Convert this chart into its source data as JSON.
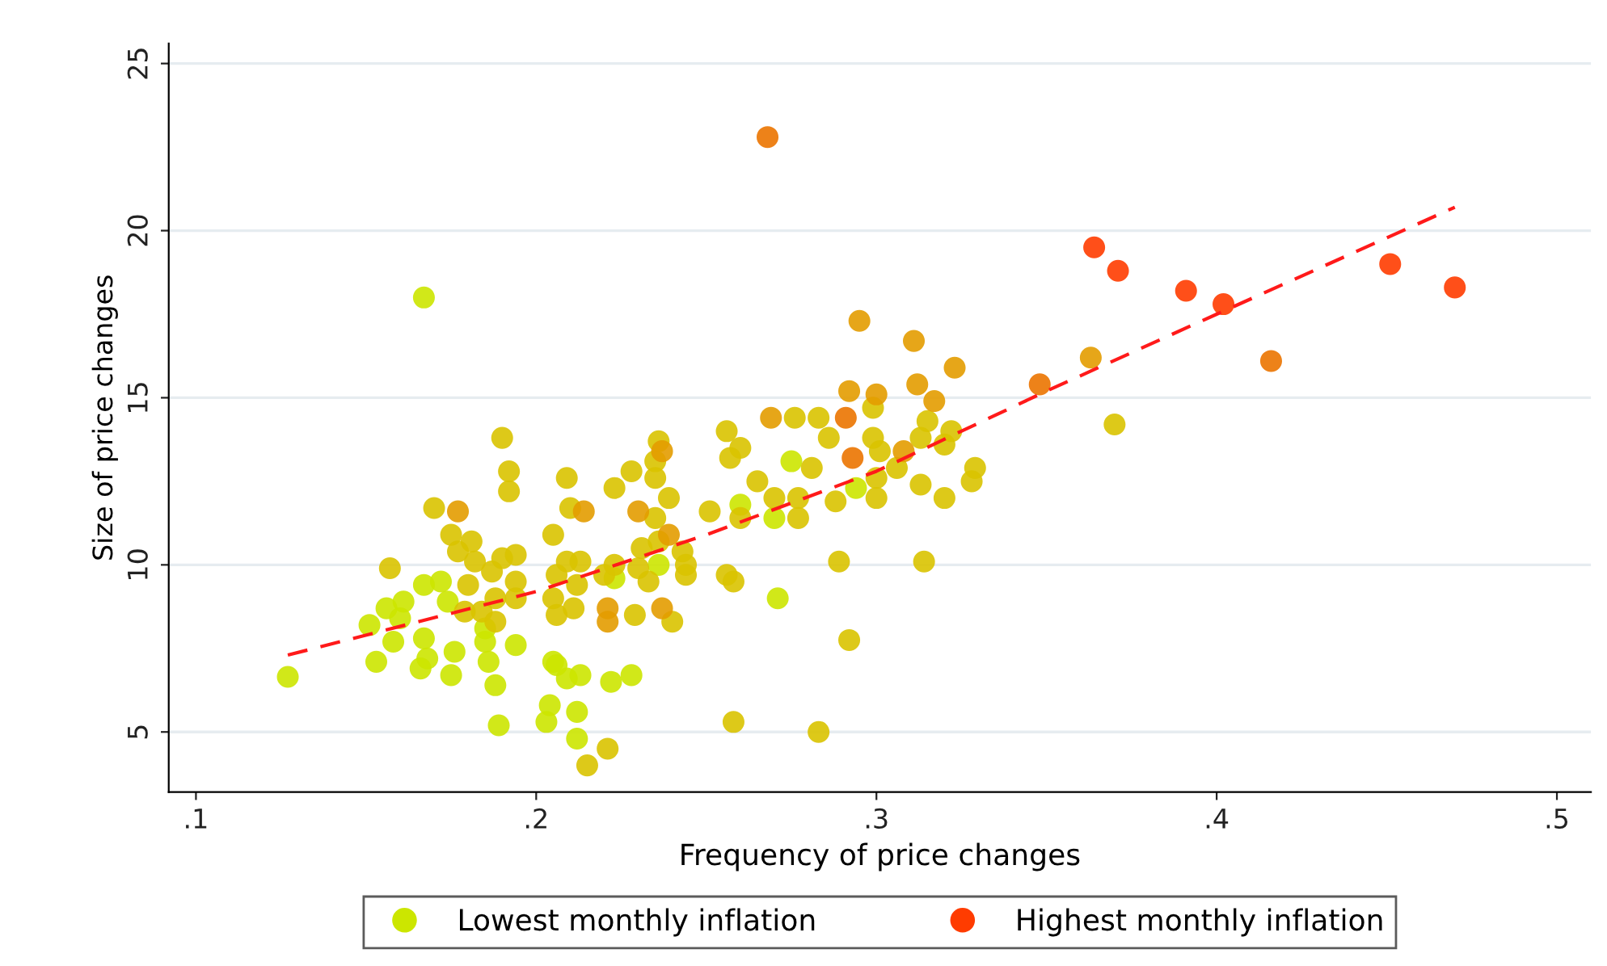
{
  "chart_data": {
    "type": "scatter",
    "xlabel": "Frequency of price changes",
    "ylabel": "Size of price changes",
    "xlim": [
      0.092,
      0.51
    ],
    "ylim": [
      3.2,
      25.6
    ],
    "xticks": [
      {
        "value": 0.1,
        "label": ".1"
      },
      {
        "value": 0.2,
        "label": ".2"
      },
      {
        "value": 0.3,
        "label": ".3"
      },
      {
        "value": 0.4,
        "label": ".4"
      },
      {
        "value": 0.5,
        "label": ".5"
      }
    ],
    "yticks": [
      5,
      10,
      15,
      20,
      25
    ],
    "grid": "y",
    "legend": "bottom",
    "marker": "circle",
    "series": [
      {
        "name": "Lowest monthly inflation",
        "color": "#cce600",
        "x": [
          0.127,
          0.167,
          0.275,
          0.294,
          0.27,
          0.271,
          0.26,
          0.236,
          0.223,
          0.174,
          0.172,
          0.167,
          0.161,
          0.156,
          0.16,
          0.151,
          0.153,
          0.158,
          0.167,
          0.168,
          0.166,
          0.176,
          0.175,
          0.185,
          0.185,
          0.186,
          0.188,
          0.194,
          0.189,
          0.204,
          0.203,
          0.205,
          0.206,
          0.209,
          0.213,
          0.212,
          0.212,
          0.222,
          0.228
        ],
        "values": [
          6.65,
          18.0,
          13.1,
          12.3,
          11.4,
          9.0,
          11.8,
          10.0,
          9.6,
          8.9,
          9.5,
          9.4,
          8.9,
          8.7,
          8.4,
          8.2,
          7.1,
          7.7,
          7.8,
          7.2,
          6.9,
          7.4,
          6.7,
          8.1,
          7.7,
          7.1,
          6.4,
          7.6,
          5.2,
          5.8,
          5.3,
          7.1,
          7.0,
          6.6,
          6.7,
          5.6,
          4.8,
          6.5,
          6.7
        ]
      },
      {
        "color": "#d9c300",
        "x": [
          0.37,
          0.299,
          0.283,
          0.276,
          0.256,
          0.26,
          0.257,
          0.265,
          0.286,
          0.299,
          0.301,
          0.313,
          0.315,
          0.32,
          0.322,
          0.329,
          0.328,
          0.32,
          0.313,
          0.306,
          0.3,
          0.3,
          0.281,
          0.288,
          0.277,
          0.277,
          0.27,
          0.289,
          0.292,
          0.283,
          0.258,
          0.314,
          0.26,
          0.251,
          0.256,
          0.258,
          0.236,
          0.235,
          0.235,
          0.228,
          0.223,
          0.239,
          0.235,
          0.236,
          0.243,
          0.244,
          0.244,
          0.24,
          0.231,
          0.233,
          0.229,
          0.23,
          0.223,
          0.209,
          0.21,
          0.205,
          0.209,
          0.213,
          0.206,
          0.211,
          0.206,
          0.212,
          0.205,
          0.192,
          0.19,
          0.192,
          0.17,
          0.175,
          0.181,
          0.177,
          0.182,
          0.187,
          0.19,
          0.194,
          0.194,
          0.194,
          0.188,
          0.184,
          0.188,
          0.18,
          0.179,
          0.157,
          0.215,
          0.221,
          0.22
        ],
        "values": [
          14.2,
          14.7,
          14.4,
          14.4,
          14.0,
          13.5,
          13.2,
          12.5,
          13.8,
          13.8,
          13.4,
          13.8,
          14.3,
          13.6,
          14.0,
          12.9,
          12.5,
          12.0,
          12.4,
          12.9,
          12.6,
          12.0,
          12.9,
          11.9,
          12.0,
          11.4,
          12.0,
          10.1,
          7.75,
          5.0,
          5.3,
          10.1,
          11.4,
          11.6,
          9.7,
          9.5,
          13.7,
          13.1,
          12.6,
          12.8,
          12.3,
          12.0,
          11.4,
          10.7,
          10.4,
          10.0,
          9.7,
          8.3,
          10.5,
          9.5,
          8.5,
          9.9,
          10.0,
          12.6,
          11.7,
          10.9,
          10.1,
          10.1,
          9.7,
          8.7,
          8.5,
          9.4,
          9.0,
          12.2,
          13.8,
          12.8,
          11.7,
          10.9,
          10.7,
          10.4,
          10.1,
          9.8,
          10.2,
          10.3,
          9.5,
          9.0,
          9.0,
          8.6,
          8.3,
          9.4,
          8.6,
          9.9,
          4.0,
          4.5,
          9.7
        ]
      },
      {
        "color": "#e39c00",
        "x": [
          0.363,
          0.295,
          0.311,
          0.323,
          0.317,
          0.312,
          0.3,
          0.292,
          0.269,
          0.308,
          0.237,
          0.23,
          0.239,
          0.237,
          0.221,
          0.221,
          0.214,
          0.177
        ],
        "values": [
          16.2,
          17.3,
          16.7,
          15.9,
          14.9,
          15.4,
          15.1,
          15.2,
          14.4,
          13.4,
          13.4,
          11.6,
          10.9,
          8.7,
          8.7,
          8.3,
          11.6,
          11.6
        ]
      },
      {
        "color": "#eb7400",
        "x": [
          0.268,
          0.416,
          0.348,
          0.291,
          0.293
        ],
        "values": [
          22.8,
          16.1,
          15.4,
          14.4,
          13.2
        ]
      },
      {
        "name": "Highest monthly inflation",
        "color": "#ff3c00",
        "x": [
          0.364,
          0.371,
          0.391,
          0.402,
          0.451,
          0.47
        ],
        "values": [
          19.5,
          18.8,
          18.2,
          17.8,
          19.0,
          18.3
        ]
      },
      {
        "type": "line",
        "color": "#ff1a1a",
        "line_style": "dashed",
        "marker": "none",
        "x": [
          0.127,
          0.2,
          0.25,
          0.3,
          0.35,
          0.4,
          0.47
        ],
        "values": [
          7.3,
          9.2,
          10.9,
          12.8,
          15.2,
          17.5,
          20.7
        ]
      }
    ]
  }
}
